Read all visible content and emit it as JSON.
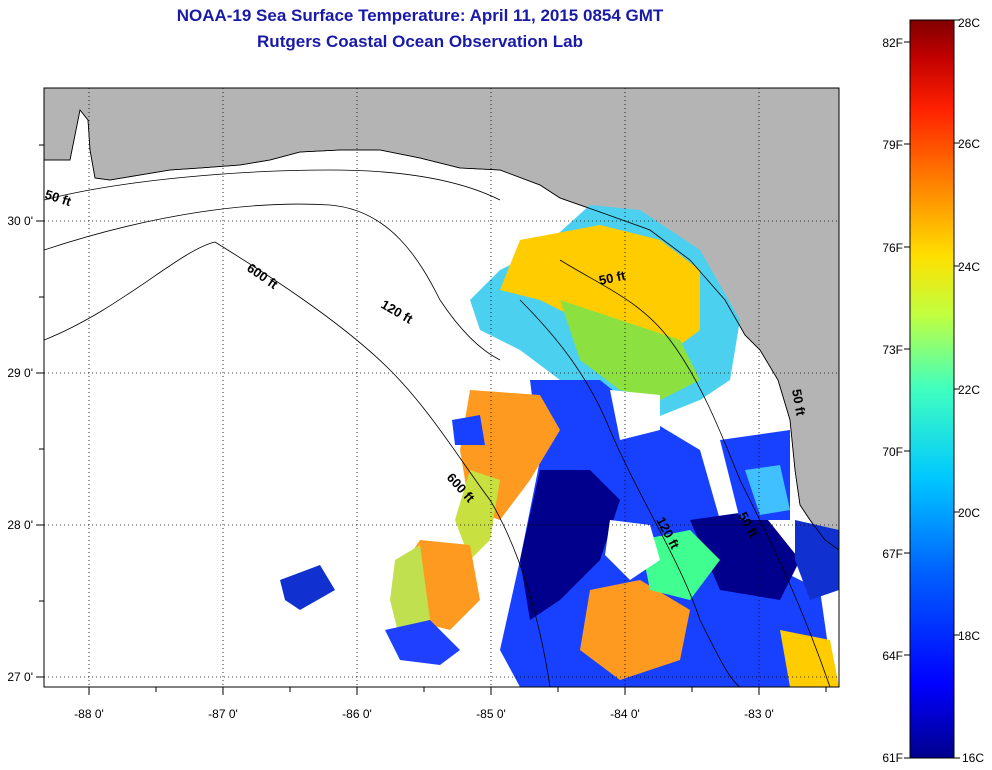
{
  "title": {
    "line1": "NOAA-19 Sea Surface Temperature:  April 11, 2015 0854 GMT",
    "line2": "Rutgers Coastal Ocean Observation Lab"
  },
  "map": {
    "lon_labels": [
      "-88 0'",
      "-87 0'",
      "-86 0'",
      "-85 0'",
      "-84 0'",
      "-83 0'"
    ],
    "lat_labels": [
      "30 0'",
      "29 0'",
      "28 0'",
      "27 0'"
    ],
    "contours": [
      "50 ft",
      "600 ft",
      "120 ft",
      "50 ft",
      "600 ft",
      "120 ft",
      "50 ft",
      "50 ft"
    ]
  },
  "colorbar": {
    "celsius": [
      "28C",
      "26C",
      "24C",
      "22C",
      "20C",
      "18C",
      "16C"
    ],
    "fahrenheit": [
      "82F",
      "79F",
      "76F",
      "73F",
      "70F",
      "67F",
      "64F",
      "61F"
    ],
    "range_c": [
      16,
      28
    ],
    "colors": [
      "#00008c",
      "#0000ff",
      "#0060ff",
      "#00c8ff",
      "#40ffc0",
      "#c0ff40",
      "#ffe000",
      "#ff8000",
      "#ff2000",
      "#c00000",
      "#800000"
    ]
  }
}
